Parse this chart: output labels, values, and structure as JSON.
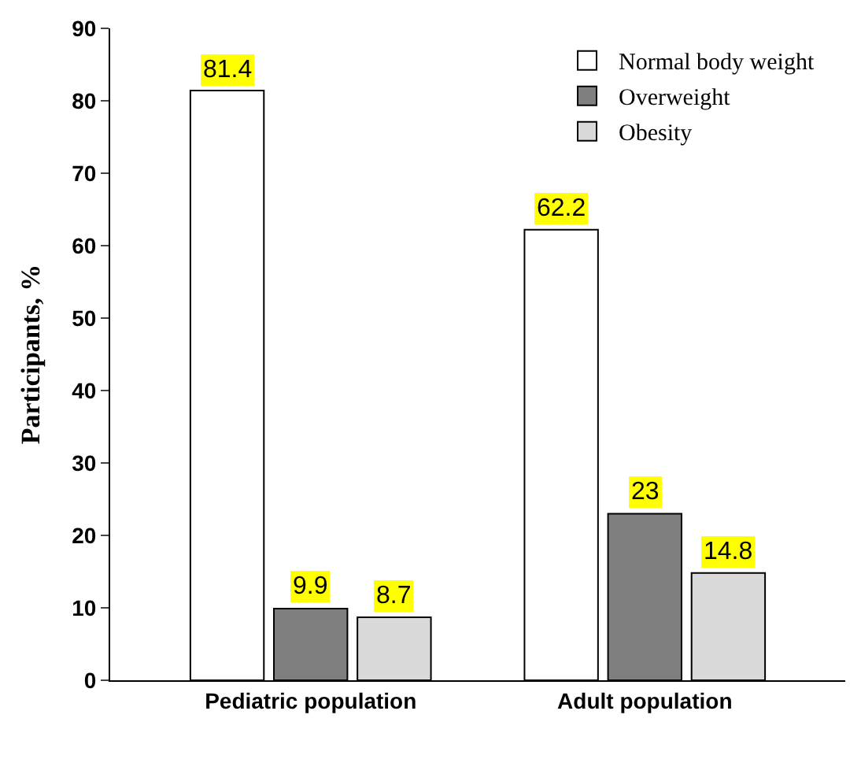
{
  "chart_data": {
    "type": "bar",
    "ylabel": "Participants, %",
    "categories": [
      "Pediatric population",
      "Adult population"
    ],
    "series": [
      {
        "name": "Normal body weight",
        "color": "#ffffff",
        "values": [
          81.4,
          62.2
        ]
      },
      {
        "name": "Overweight",
        "color": "#7f7f7f",
        "values": [
          9.9,
          23
        ]
      },
      {
        "name": "Obesity",
        "color": "#d9d9d9",
        "values": [
          8.7,
          14.8
        ]
      }
    ],
    "ylim": [
      0,
      90
    ],
    "yticks": [
      0,
      10,
      20,
      30,
      40,
      50,
      60,
      70,
      80,
      90
    ],
    "data_labels": true,
    "legend": "top right"
  }
}
